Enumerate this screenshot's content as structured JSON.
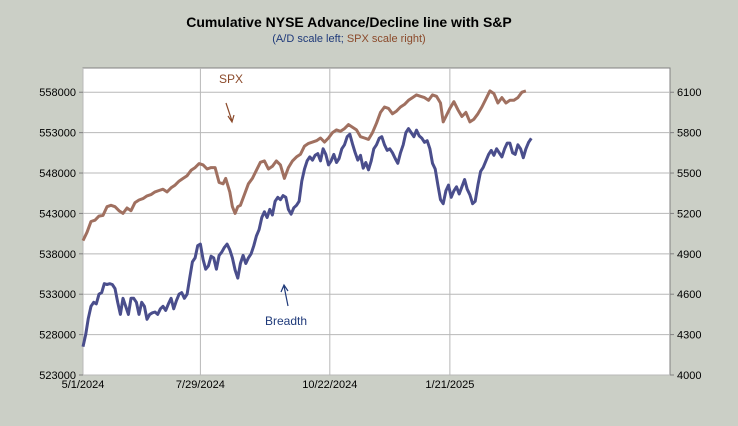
{
  "chart_data": {
    "type": "line",
    "title": "Cumulative NYSE Advance/Decline line with S&P",
    "subtitle_parts": [
      {
        "text": "(A/D scale left; ",
        "color": "#1f3a7a"
      },
      {
        "text": "SPX scale right)",
        "color": "#8b4a2b"
      }
    ],
    "x_ticks": [
      "5/1/2024",
      "7/29/2024",
      "10/22/2024",
      "1/21/2025"
    ],
    "y_left": {
      "min": 523000,
      "max": 561000,
      "ticks": [
        523000,
        528000,
        533000,
        538000,
        543000,
        548000,
        553000,
        558000
      ]
    },
    "y_right": {
      "min": 4000,
      "max": 6280,
      "ticks": [
        4000,
        4300,
        4600,
        4900,
        5200,
        5500,
        5800,
        6100
      ]
    },
    "grid": true,
    "annotations": [
      {
        "text": "SPX",
        "color": "#8b4a2b"
      },
      {
        "text": "Breadth",
        "color": "#1f3a7a"
      }
    ],
    "series": [
      {
        "key": "spx",
        "axis": "right",
        "color": "#a07060",
        "values": [
          [
            0,
            4998
          ],
          [
            3,
            5060
          ],
          [
            6,
            5140
          ],
          [
            9,
            5150
          ],
          [
            12,
            5180
          ],
          [
            15,
            5185
          ],
          [
            18,
            5250
          ],
          [
            21,
            5260
          ],
          [
            24,
            5250
          ],
          [
            27,
            5220
          ],
          [
            30,
            5200
          ],
          [
            33,
            5240
          ],
          [
            36,
            5220
          ],
          [
            39,
            5280
          ],
          [
            42,
            5300
          ],
          [
            45,
            5310
          ],
          [
            48,
            5330
          ],
          [
            51,
            5340
          ],
          [
            54,
            5360
          ],
          [
            57,
            5370
          ],
          [
            60,
            5380
          ],
          [
            63,
            5360
          ],
          [
            66,
            5390
          ],
          [
            69,
            5410
          ],
          [
            72,
            5440
          ],
          [
            75,
            5460
          ],
          [
            78,
            5480
          ],
          [
            81,
            5520
          ],
          [
            84,
            5540
          ],
          [
            87,
            5570
          ],
          [
            90,
            5560
          ],
          [
            93,
            5530
          ],
          [
            96,
            5540
          ],
          [
            99,
            5540
          ],
          [
            102,
            5430
          ],
          [
            105,
            5420
          ],
          [
            107,
            5460
          ],
          [
            110,
            5360
          ],
          [
            112,
            5250
          ],
          [
            114,
            5200
          ],
          [
            116,
            5250
          ],
          [
            118,
            5260
          ],
          [
            121,
            5340
          ],
          [
            124,
            5420
          ],
          [
            127,
            5460
          ],
          [
            130,
            5520
          ],
          [
            133,
            5580
          ],
          [
            136,
            5590
          ],
          [
            139,
            5530
          ],
          [
            142,
            5550
          ],
          [
            145,
            5590
          ],
          [
            148,
            5560
          ],
          [
            151,
            5460
          ],
          [
            154,
            5540
          ],
          [
            157,
            5590
          ],
          [
            160,
            5620
          ],
          [
            163,
            5640
          ],
          [
            166,
            5700
          ],
          [
            169,
            5720
          ],
          [
            172,
            5730
          ],
          [
            175,
            5740
          ],
          [
            178,
            5760
          ],
          [
            181,
            5730
          ],
          [
            184,
            5760
          ],
          [
            187,
            5800
          ],
          [
            190,
            5820
          ],
          [
            193,
            5810
          ],
          [
            196,
            5830
          ],
          [
            199,
            5860
          ],
          [
            202,
            5840
          ],
          [
            205,
            5820
          ],
          [
            208,
            5770
          ],
          [
            211,
            5760
          ],
          [
            214,
            5750
          ],
          [
            217,
            5800
          ],
          [
            220,
            5870
          ],
          [
            223,
            5950
          ],
          [
            226,
            5990
          ],
          [
            229,
            5980
          ],
          [
            232,
            5940
          ],
          [
            235,
            5960
          ],
          [
            238,
            5990
          ],
          [
            241,
            6010
          ],
          [
            244,
            6040
          ],
          [
            247,
            6060
          ],
          [
            250,
            6080
          ],
          [
            253,
            6070
          ],
          [
            256,
            6060
          ],
          [
            259,
            6040
          ],
          [
            262,
            6080
          ],
          [
            265,
            6070
          ],
          [
            268,
            6020
          ],
          [
            270,
            5880
          ],
          [
            272,
            5920
          ],
          [
            275,
            5980
          ],
          [
            278,
            6030
          ],
          [
            281,
            5970
          ],
          [
            284,
            5920
          ],
          [
            287,
            5950
          ],
          [
            290,
            5880
          ],
          [
            293,
            5900
          ],
          [
            296,
            5940
          ],
          [
            299,
            5990
          ],
          [
            302,
            6050
          ],
          [
            305,
            6110
          ],
          [
            308,
            6090
          ],
          [
            311,
            6020
          ],
          [
            314,
            6060
          ],
          [
            317,
            6020
          ],
          [
            320,
            6040
          ],
          [
            323,
            6040
          ],
          [
            326,
            6060
          ],
          [
            329,
            6100
          ],
          [
            332,
            6110
          ]
        ]
      },
      {
        "key": "breadth",
        "axis": "left",
        "color": "#4a4e8c",
        "values": [
          [
            0,
            526500
          ],
          [
            2,
            528000
          ],
          [
            4,
            530000
          ],
          [
            6,
            531500
          ],
          [
            8,
            532000
          ],
          [
            10,
            531800
          ],
          [
            12,
            533000
          ],
          [
            14,
            533200
          ],
          [
            16,
            534300
          ],
          [
            18,
            534200
          ],
          [
            20,
            534300
          ],
          [
            22,
            534200
          ],
          [
            24,
            533700
          ],
          [
            26,
            532000
          ],
          [
            28,
            530500
          ],
          [
            30,
            532500
          ],
          [
            32,
            531500
          ],
          [
            34,
            530500
          ],
          [
            36,
            532500
          ],
          [
            38,
            532500
          ],
          [
            40,
            532000
          ],
          [
            42,
            530500
          ],
          [
            44,
            532000
          ],
          [
            46,
            531500
          ],
          [
            48,
            529900
          ],
          [
            50,
            530500
          ],
          [
            52,
            530700
          ],
          [
            54,
            530800
          ],
          [
            56,
            530500
          ],
          [
            58,
            531200
          ],
          [
            60,
            531500
          ],
          [
            62,
            531000
          ],
          [
            64,
            531800
          ],
          [
            66,
            532500
          ],
          [
            68,
            531200
          ],
          [
            70,
            532200
          ],
          [
            72,
            533000
          ],
          [
            74,
            533200
          ],
          [
            76,
            532500
          ],
          [
            78,
            533000
          ],
          [
            80,
            535000
          ],
          [
            82,
            537000
          ],
          [
            84,
            537500
          ],
          [
            86,
            539000
          ],
          [
            88,
            539200
          ],
          [
            90,
            537300
          ],
          [
            92,
            536100
          ],
          [
            94,
            536500
          ],
          [
            96,
            537700
          ],
          [
            98,
            537500
          ],
          [
            100,
            536100
          ],
          [
            102,
            537800
          ],
          [
            104,
            538200
          ],
          [
            106,
            538800
          ],
          [
            108,
            539200
          ],
          [
            110,
            538500
          ],
          [
            112,
            537500
          ],
          [
            114,
            536000
          ],
          [
            116,
            535000
          ],
          [
            118,
            536800
          ],
          [
            120,
            537800
          ],
          [
            122,
            536800
          ],
          [
            124,
            537500
          ],
          [
            126,
            538000
          ],
          [
            128,
            539000
          ],
          [
            130,
            540200
          ],
          [
            132,
            541000
          ],
          [
            134,
            542500
          ],
          [
            136,
            543200
          ],
          [
            138,
            542500
          ],
          [
            140,
            543500
          ],
          [
            142,
            542800
          ],
          [
            144,
            544500
          ],
          [
            146,
            545000
          ],
          [
            148,
            544700
          ],
          [
            150,
            545200
          ],
          [
            152,
            545000
          ],
          [
            154,
            543500
          ],
          [
            156,
            542900
          ],
          [
            158,
            543700
          ],
          [
            160,
            544000
          ],
          [
            162,
            544500
          ],
          [
            164,
            547000
          ],
          [
            166,
            548500
          ],
          [
            168,
            549500
          ],
          [
            170,
            550000
          ],
          [
            172,
            549600
          ],
          [
            174,
            550200
          ],
          [
            176,
            550400
          ],
          [
            178,
            549500
          ],
          [
            180,
            551000
          ],
          [
            182,
            550300
          ],
          [
            184,
            549000
          ],
          [
            186,
            549500
          ],
          [
            188,
            550300
          ],
          [
            190,
            549300
          ],
          [
            192,
            549800
          ],
          [
            194,
            551000
          ],
          [
            196,
            551500
          ],
          [
            198,
            552500
          ],
          [
            200,
            552800
          ],
          [
            202,
            551600
          ],
          [
            204,
            550500
          ],
          [
            206,
            549600
          ],
          [
            208,
            550200
          ],
          [
            210,
            548600
          ],
          [
            212,
            549300
          ],
          [
            214,
            548400
          ],
          [
            216,
            549500
          ],
          [
            218,
            551000
          ],
          [
            220,
            551500
          ],
          [
            222,
            552300
          ],
          [
            224,
            552500
          ],
          [
            226,
            551500
          ],
          [
            228,
            550800
          ],
          [
            230,
            551000
          ],
          [
            232,
            550500
          ],
          [
            234,
            549800
          ],
          [
            236,
            549200
          ],
          [
            238,
            550500
          ],
          [
            240,
            551500
          ],
          [
            242,
            553000
          ],
          [
            244,
            553500
          ],
          [
            246,
            553000
          ],
          [
            248,
            552500
          ],
          [
            250,
            553300
          ],
          [
            252,
            552600
          ],
          [
            254,
            552300
          ],
          [
            256,
            551800
          ],
          [
            258,
            552000
          ],
          [
            260,
            551000
          ],
          [
            262,
            549200
          ],
          [
            264,
            548500
          ],
          [
            266,
            546500
          ],
          [
            268,
            544700
          ],
          [
            270,
            544200
          ],
          [
            272,
            545800
          ],
          [
            274,
            546500
          ],
          [
            276,
            545000
          ],
          [
            278,
            545800
          ],
          [
            280,
            546300
          ],
          [
            282,
            545400
          ],
          [
            284,
            546300
          ],
          [
            286,
            547200
          ],
          [
            288,
            546000
          ],
          [
            290,
            545300
          ],
          [
            292,
            544200
          ],
          [
            294,
            544500
          ],
          [
            296,
            546500
          ],
          [
            298,
            548200
          ],
          [
            300,
            548700
          ],
          [
            302,
            549500
          ],
          [
            304,
            550300
          ],
          [
            306,
            550800
          ],
          [
            308,
            550200
          ],
          [
            310,
            551000
          ],
          [
            312,
            550500
          ],
          [
            314,
            550000
          ],
          [
            316,
            551000
          ],
          [
            318,
            551700
          ],
          [
            320,
            551700
          ],
          [
            322,
            550500
          ],
          [
            324,
            550300
          ],
          [
            326,
            551500
          ],
          [
            328,
            551000
          ],
          [
            330,
            549900
          ],
          [
            332,
            551000
          ],
          [
            334,
            551800
          ],
          [
            336,
            552300
          ]
        ]
      }
    ]
  }
}
